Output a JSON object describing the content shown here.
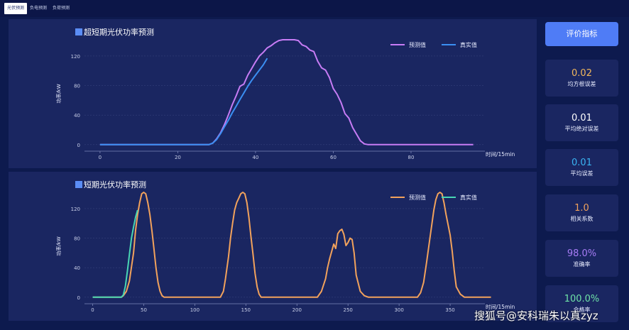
{
  "tabs": [
    {
      "label": "光伏预测",
      "active": true
    },
    {
      "label": "负电预测",
      "active": false
    },
    {
      "label": "负荷预测",
      "active": false
    }
  ],
  "sidebar": {
    "button_label": "评价指标",
    "metrics": [
      {
        "value": "0.02",
        "label": "均方根误差",
        "color": "#f2b85c"
      },
      {
        "value": "0.01",
        "label": "平均绝对误差",
        "color": "#ffffff"
      },
      {
        "value": "0.01",
        "label": "平均误差",
        "color": "#3ab4f2"
      },
      {
        "value": "1.0",
        "label": "相关系数",
        "color": "#f2a25c"
      },
      {
        "value": "98.0%",
        "label": "准确率",
        "color": "#a77cf5"
      },
      {
        "value": "100.0%",
        "label": "合格率",
        "color": "#6fe3a8"
      }
    ]
  },
  "watermark": "搜狐号@安科瑞朱以真zyz",
  "chart_data": [
    {
      "type": "line",
      "title": "超短期光伏功率预测",
      "xlabel": "时间/15min",
      "ylabel": "功率/kW",
      "xlim": [
        -4,
        99
      ],
      "ylim": [
        -5,
        143
      ],
      "xticks": [
        0,
        20,
        40,
        60,
        80
      ],
      "yticks": [
        0,
        40,
        80,
        120
      ],
      "grid": true,
      "legend": "top-right",
      "series": [
        {
          "name": "预测值",
          "color": "#c77cf5",
          "x": [
            0,
            28,
            29,
            30,
            31,
            32,
            33,
            34,
            35,
            36,
            37,
            38,
            39,
            40,
            41,
            42,
            43,
            44,
            45,
            46,
            47,
            48,
            49,
            50,
            51,
            52,
            53,
            54,
            55,
            56,
            57,
            58,
            59,
            60,
            61,
            62,
            63,
            64,
            65,
            66,
            67,
            68,
            69,
            70,
            96
          ],
          "y": [
            0,
            0,
            2,
            8,
            16,
            27,
            40,
            54,
            66,
            79,
            82,
            94,
            103,
            112,
            120,
            125,
            131,
            134,
            138,
            141,
            142,
            142,
            142,
            142,
            141,
            135,
            133,
            128,
            126,
            113,
            104,
            101,
            91,
            76,
            68,
            57,
            42,
            36,
            23,
            14,
            5,
            1,
            0,
            0,
            0
          ]
        },
        {
          "name": "真实值",
          "color": "#3b8ff2",
          "x": [
            0,
            28,
            29,
            30,
            31,
            32,
            33,
            34,
            35,
            36,
            37,
            38,
            39,
            40,
            41,
            42,
            43
          ],
          "y": [
            0,
            0,
            2,
            7,
            15,
            24,
            33,
            43,
            52,
            61,
            70,
            79,
            87,
            94,
            101,
            108,
            117
          ]
        }
      ]
    },
    {
      "type": "line",
      "title": "短期光伏功率预测",
      "xlabel": "时间/15min",
      "ylabel": "功率/kW",
      "xlim": [
        -8,
        384
      ],
      "ylim": [
        -5,
        143
      ],
      "xticks": [
        0,
        50,
        100,
        150,
        200,
        250,
        300,
        350
      ],
      "yticks": [
        0,
        40,
        80,
        120
      ],
      "grid": true,
      "legend": "top-right",
      "series": [
        {
          "name": "预测值",
          "color": "#f2a25c",
          "x": [
            0,
            28,
            30,
            33,
            36,
            40,
            42,
            44,
            46,
            48,
            50,
            52,
            54,
            56,
            58,
            60,
            62,
            64,
            66,
            68,
            70,
            72,
            125,
            128,
            130,
            133,
            135,
            137,
            139,
            141,
            143,
            145,
            147,
            149,
            151,
            153,
            155,
            157,
            159,
            161,
            163,
            165,
            167,
            220,
            224,
            228,
            230,
            232,
            234,
            236,
            238,
            240,
            242,
            244,
            246,
            248,
            250,
            252,
            254,
            256,
            258,
            262,
            266,
            270,
            318,
            321,
            324,
            327,
            330,
            332,
            334,
            336,
            338,
            340,
            342,
            344,
            346,
            348,
            350,
            352,
            354,
            356,
            360,
            364,
            390
          ],
          "y": [
            0,
            0,
            2,
            8,
            22,
            60,
            90,
            112,
            128,
            140,
            142,
            140,
            128,
            112,
            90,
            66,
            40,
            20,
            8,
            2,
            0,
            0,
            0,
            8,
            25,
            55,
            80,
            100,
            118,
            128,
            134,
            140,
            142,
            140,
            128,
            108,
            82,
            58,
            32,
            14,
            4,
            0,
            0,
            0,
            8,
            25,
            40,
            52,
            62,
            72,
            66,
            86,
            90,
            92,
            85,
            70,
            74,
            80,
            78,
            60,
            30,
            8,
            2,
            0,
            0,
            6,
            20,
            48,
            78,
            98,
            118,
            132,
            140,
            142,
            140,
            128,
            112,
            98,
            84,
            62,
            36,
            14,
            4,
            0,
            0
          ]
        },
        {
          "name": "真实值",
          "color": "#48d6b4",
          "x": [
            0,
            28,
            30,
            32,
            34,
            36,
            38,
            40,
            42,
            44
          ],
          "y": [
            0,
            0,
            3,
            15,
            35,
            58,
            80,
            95,
            108,
            118
          ]
        }
      ]
    }
  ]
}
